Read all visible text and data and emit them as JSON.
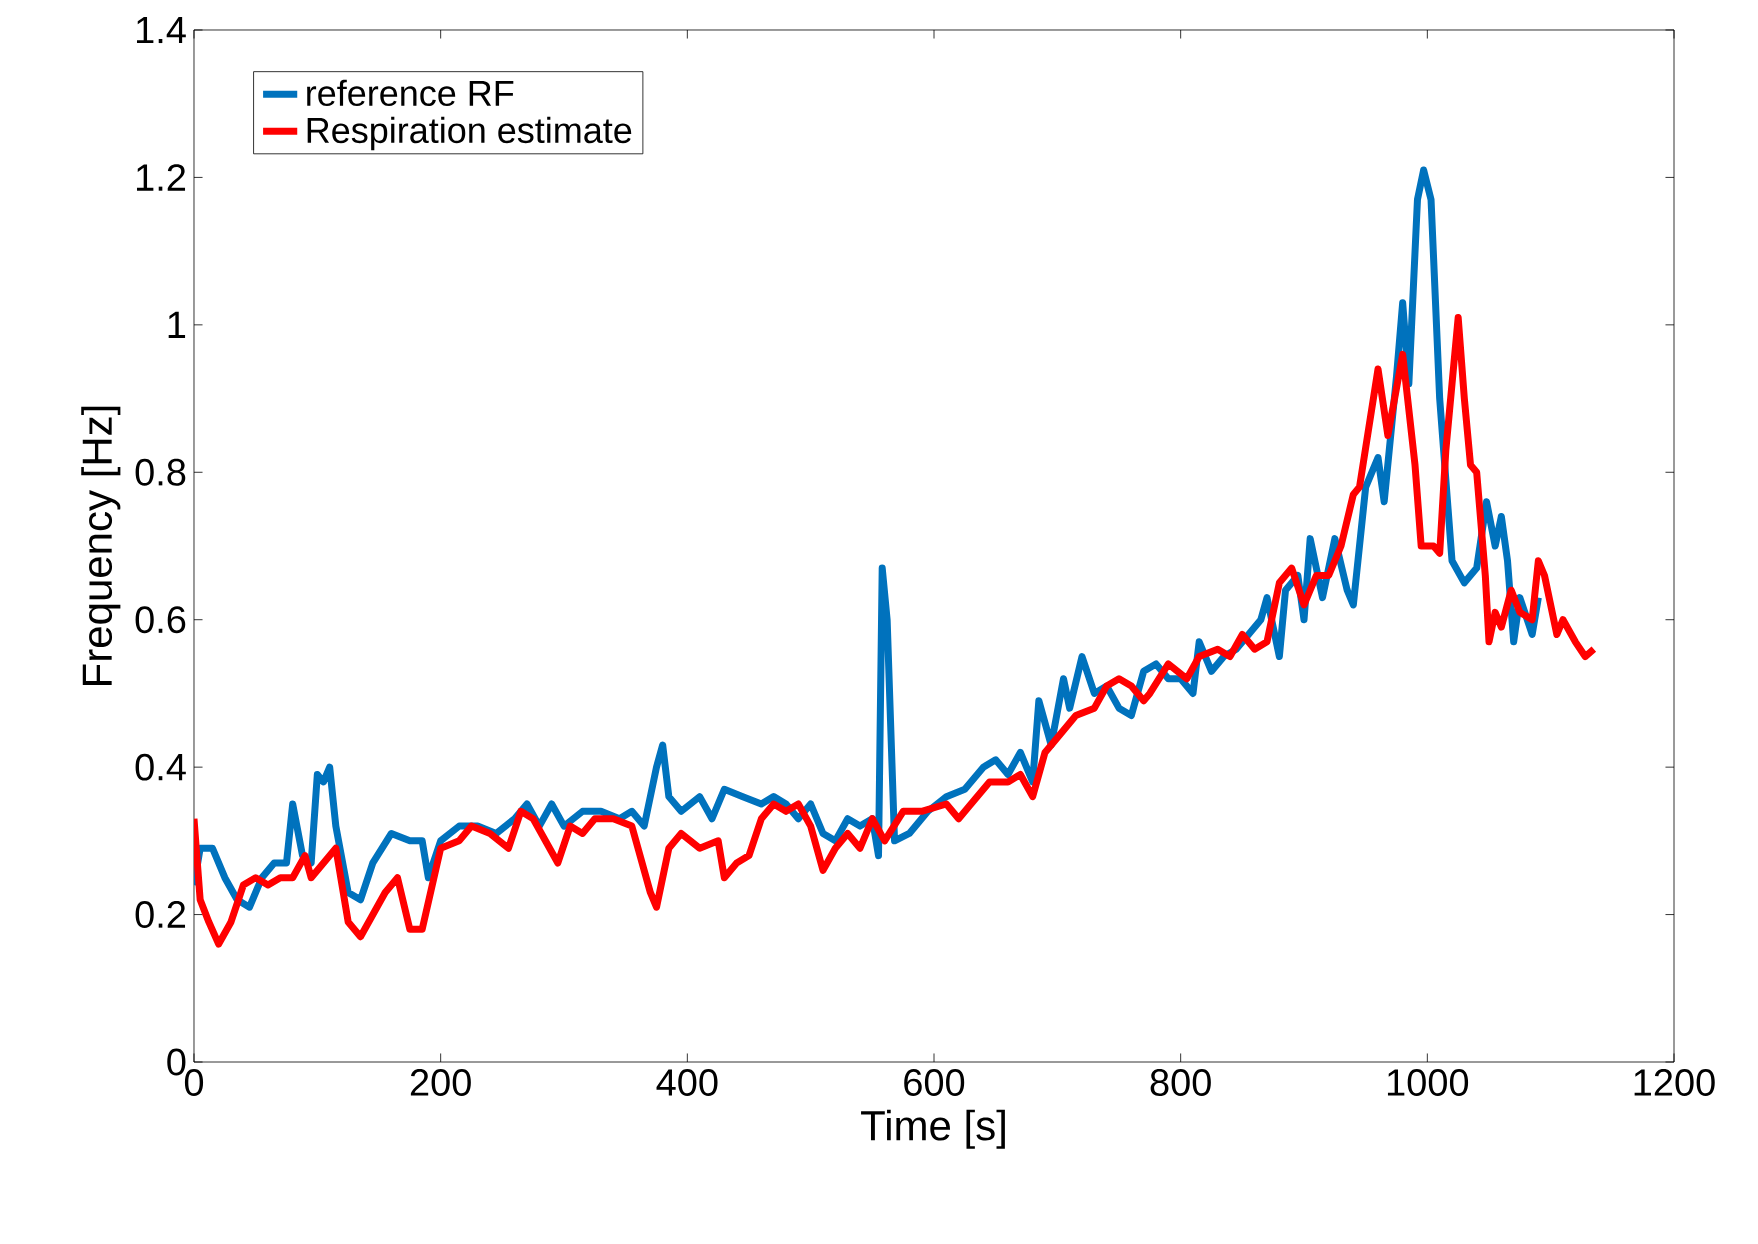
{
  "chart_data": {
    "type": "line",
    "xlabel": "Time [s]",
    "ylabel": "Frequency [Hz]",
    "xlim": [
      0,
      1200
    ],
    "ylim": [
      0,
      1.4
    ],
    "xticks": [
      0,
      200,
      400,
      600,
      800,
      1000,
      1200
    ],
    "yticks": [
      0,
      0.2,
      0.4,
      0.6,
      0.8,
      1,
      1.2,
      1.4
    ],
    "legend": "top left",
    "grid": false,
    "marker": "none",
    "line_style": "solid",
    "series": [
      {
        "name": "reference RF",
        "color": "#0072bd",
        "x": [
          0,
          5,
          15,
          25,
          35,
          45,
          55,
          65,
          75,
          80,
          88,
          95,
          100,
          105,
          110,
          115,
          125,
          135,
          145,
          160,
          175,
          185,
          190,
          200,
          215,
          230,
          245,
          260,
          270,
          280,
          290,
          300,
          315,
          330,
          345,
          355,
          365,
          375,
          380,
          385,
          395,
          410,
          420,
          430,
          445,
          460,
          470,
          480,
          490,
          500,
          510,
          520,
          530,
          540,
          550,
          555,
          558,
          562,
          568,
          580,
          595,
          610,
          625,
          640,
          650,
          660,
          670,
          680,
          685,
          695,
          705,
          710,
          720,
          730,
          740,
          750,
          760,
          770,
          780,
          790,
          800,
          810,
          815,
          825,
          835,
          845,
          855,
          865,
          870,
          880,
          885,
          895,
          900,
          905,
          915,
          925,
          935,
          940,
          950,
          960,
          965,
          975,
          980,
          985,
          992,
          997,
          1003,
          1010,
          1020,
          1030,
          1040,
          1048,
          1055,
          1060,
          1065,
          1070,
          1075,
          1085,
          1090
        ],
        "values": [
          0.24,
          0.29,
          0.29,
          0.25,
          0.22,
          0.21,
          0.25,
          0.27,
          0.27,
          0.35,
          0.28,
          0.27,
          0.39,
          0.38,
          0.4,
          0.32,
          0.23,
          0.22,
          0.27,
          0.31,
          0.3,
          0.3,
          0.25,
          0.3,
          0.32,
          0.32,
          0.31,
          0.33,
          0.35,
          0.32,
          0.35,
          0.32,
          0.34,
          0.34,
          0.33,
          0.34,
          0.32,
          0.4,
          0.43,
          0.36,
          0.34,
          0.36,
          0.33,
          0.37,
          0.36,
          0.35,
          0.36,
          0.35,
          0.33,
          0.35,
          0.31,
          0.3,
          0.33,
          0.32,
          0.33,
          0.28,
          0.67,
          0.6,
          0.3,
          0.31,
          0.34,
          0.36,
          0.37,
          0.4,
          0.41,
          0.39,
          0.42,
          0.38,
          0.49,
          0.43,
          0.52,
          0.48,
          0.55,
          0.5,
          0.51,
          0.48,
          0.47,
          0.53,
          0.54,
          0.52,
          0.52,
          0.5,
          0.57,
          0.53,
          0.55,
          0.56,
          0.58,
          0.6,
          0.63,
          0.55,
          0.64,
          0.66,
          0.6,
          0.71,
          0.63,
          0.71,
          0.64,
          0.62,
          0.78,
          0.82,
          0.76,
          0.93,
          1.03,
          0.92,
          1.17,
          1.21,
          1.17,
          0.9,
          0.68,
          0.65,
          0.67,
          0.76,
          0.7,
          0.74,
          0.68,
          0.57,
          0.63,
          0.58,
          0.63
        ]
      },
      {
        "name": "Respiration estimate",
        "color": "#ff0000",
        "x": [
          0,
          5,
          12,
          20,
          30,
          40,
          50,
          60,
          70,
          80,
          90,
          95,
          105,
          115,
          125,
          135,
          145,
          155,
          165,
          175,
          185,
          200,
          215,
          225,
          240,
          255,
          265,
          275,
          285,
          295,
          305,
          315,
          325,
          340,
          355,
          370,
          375,
          385,
          395,
          410,
          425,
          430,
          440,
          450,
          460,
          470,
          480,
          490,
          500,
          510,
          520,
          530,
          540,
          550,
          560,
          575,
          590,
          610,
          620,
          630,
          645,
          660,
          670,
          680,
          690,
          700,
          715,
          730,
          740,
          750,
          760,
          770,
          775,
          790,
          805,
          815,
          830,
          840,
          850,
          860,
          870,
          880,
          890,
          900,
          910,
          920,
          930,
          940,
          945,
          960,
          968,
          980,
          990,
          995,
          1005,
          1010,
          1015,
          1020,
          1025,
          1030,
          1035,
          1040,
          1047,
          1050,
          1055,
          1060,
          1068,
          1075,
          1085,
          1090,
          1095,
          1105,
          1110,
          1120,
          1128,
          1135
        ],
        "values": [
          0.33,
          0.22,
          0.19,
          0.16,
          0.19,
          0.24,
          0.25,
          0.24,
          0.25,
          0.25,
          0.28,
          0.25,
          0.27,
          0.29,
          0.19,
          0.17,
          0.2,
          0.23,
          0.25,
          0.18,
          0.18,
          0.29,
          0.3,
          0.32,
          0.31,
          0.29,
          0.34,
          0.33,
          0.3,
          0.27,
          0.32,
          0.31,
          0.33,
          0.33,
          0.32,
          0.23,
          0.21,
          0.29,
          0.31,
          0.29,
          0.3,
          0.25,
          0.27,
          0.28,
          0.33,
          0.35,
          0.34,
          0.35,
          0.32,
          0.26,
          0.29,
          0.31,
          0.29,
          0.33,
          0.3,
          0.34,
          0.34,
          0.35,
          0.33,
          0.35,
          0.38,
          0.38,
          0.39,
          0.36,
          0.42,
          0.44,
          0.47,
          0.48,
          0.51,
          0.52,
          0.51,
          0.49,
          0.5,
          0.54,
          0.52,
          0.55,
          0.56,
          0.55,
          0.58,
          0.56,
          0.57,
          0.65,
          0.67,
          0.62,
          0.66,
          0.66,
          0.7,
          0.77,
          0.78,
          0.94,
          0.85,
          0.96,
          0.81,
          0.7,
          0.7,
          0.69,
          0.83,
          0.92,
          1.01,
          0.9,
          0.81,
          0.8,
          0.66,
          0.57,
          0.61,
          0.59,
          0.64,
          0.61,
          0.6,
          0.68,
          0.66,
          0.58,
          0.6,
          0.57,
          0.55,
          0.56
        ]
      }
    ]
  }
}
